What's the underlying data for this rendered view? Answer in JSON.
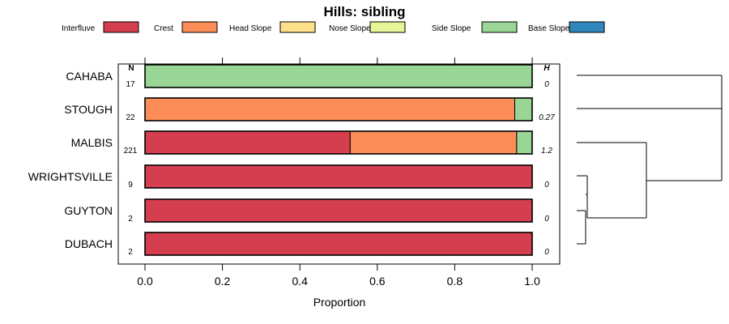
{
  "chart_data": {
    "type": "bar",
    "orientation": "horizontal",
    "stacked": true,
    "title": "Hills: sibling",
    "xlabel": "Proportion",
    "ylabel": "",
    "xlim": [
      0,
      1
    ],
    "xticks": [
      "0.0",
      "0.2",
      "0.4",
      "0.6",
      "0.8",
      "1.0"
    ],
    "n_header": "N",
    "h_header": "H",
    "legend_position": "top",
    "categories": [
      "CAHABA",
      "STOUGH",
      "MALBIS",
      "WRIGHTSVILLE",
      "GUYTON",
      "DUBACH"
    ],
    "n": [
      "17",
      "22",
      "221",
      "9",
      "2",
      "2"
    ],
    "h": [
      "0",
      "0.27",
      "1.2",
      "0",
      "0",
      "0"
    ],
    "series": [
      {
        "name": "Interfluve",
        "color": "#d53e4f",
        "values": [
          0,
          0,
          0.53,
          1,
          1,
          1
        ]
      },
      {
        "name": "Crest",
        "color": "#fc8d59",
        "values": [
          0,
          0.955,
          0.43,
          0,
          0,
          0
        ]
      },
      {
        "name": "Head Slope",
        "color": "#fee08b",
        "values": [
          0,
          0,
          0,
          0,
          0,
          0
        ]
      },
      {
        "name": "Nose Slope",
        "color": "#e6f598",
        "values": [
          0,
          0,
          0,
          0,
          0,
          0
        ]
      },
      {
        "name": "Side Slope",
        "color": "#99d594",
        "values": [
          1,
          0.045,
          0.04,
          0,
          0,
          0
        ]
      },
      {
        "name": "Base Slope",
        "color": "#3288bd",
        "values": [
          0,
          0,
          0,
          0,
          0,
          0
        ]
      }
    ],
    "dendrogram_merges": [
      [
        "GUYTON",
        "DUBACH"
      ],
      [
        "WRIGHTSVILLE",
        "GUYTON+DUBACH"
      ],
      [
        "MALBIS",
        "WRIGHTSVILLE+GUYTON+DUBACH"
      ],
      [
        "CAHABA",
        "STOUGH"
      ],
      [
        "CAHABA+STOUGH",
        "MALBIS+WRIGHTSVILLE+GUYTON+DUBACH"
      ]
    ]
  }
}
